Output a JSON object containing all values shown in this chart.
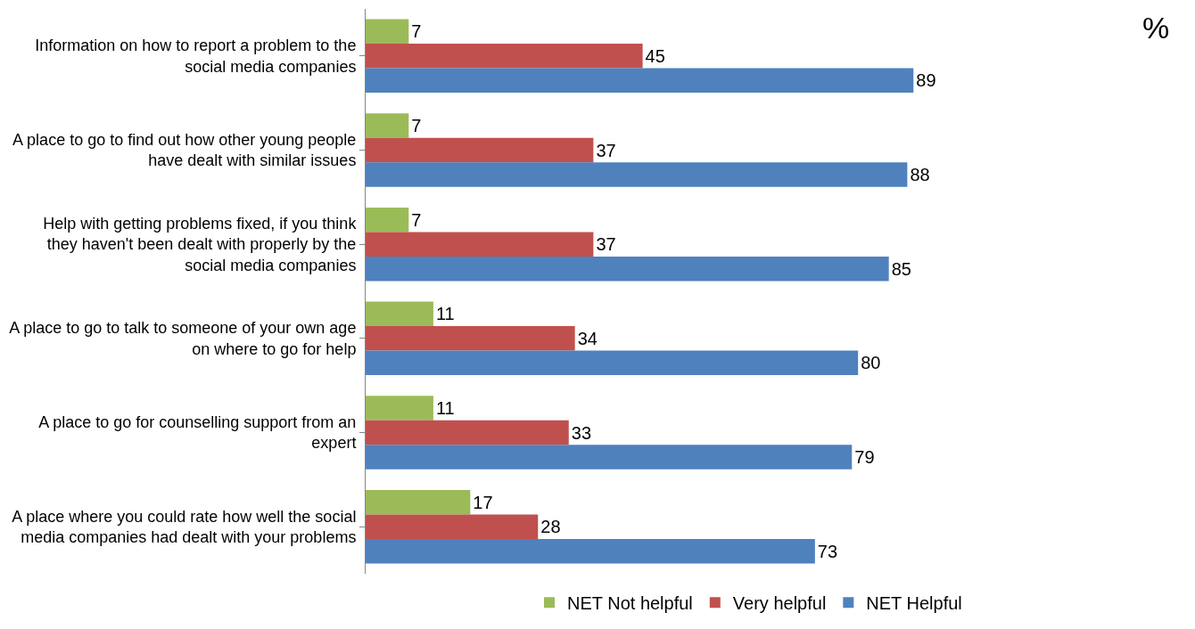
{
  "chart_data": {
    "type": "bar",
    "orientation": "horizontal",
    "data_labels": true,
    "legend": "bottom",
    "categories": [
      "Information on how to report a problem to the social media companies",
      "A place to go to find out how other young people have dealt with similar issues",
      "Help with getting problems fixed, if you think they haven't been dealt with properly by the social media companies",
      "A place to go to talk to someone of your own age on where to go for help",
      "A place to go for counselling support from an expert",
      "A place where you could rate how well the social media companies had dealt with your problems"
    ],
    "series": [
      {
        "name": "NET Not helpful",
        "color": "#9bbb59",
        "values": [
          7,
          7,
          7,
          11,
          11,
          17
        ]
      },
      {
        "name": "Very helpful",
        "color": "#c0504d",
        "values": [
          45,
          37,
          37,
          34,
          33,
          28
        ]
      },
      {
        "name": "NET Helpful",
        "color": "#4f81bd",
        "values": [
          89,
          88,
          85,
          80,
          79,
          73
        ]
      }
    ],
    "annotations": [
      "%"
    ]
  }
}
